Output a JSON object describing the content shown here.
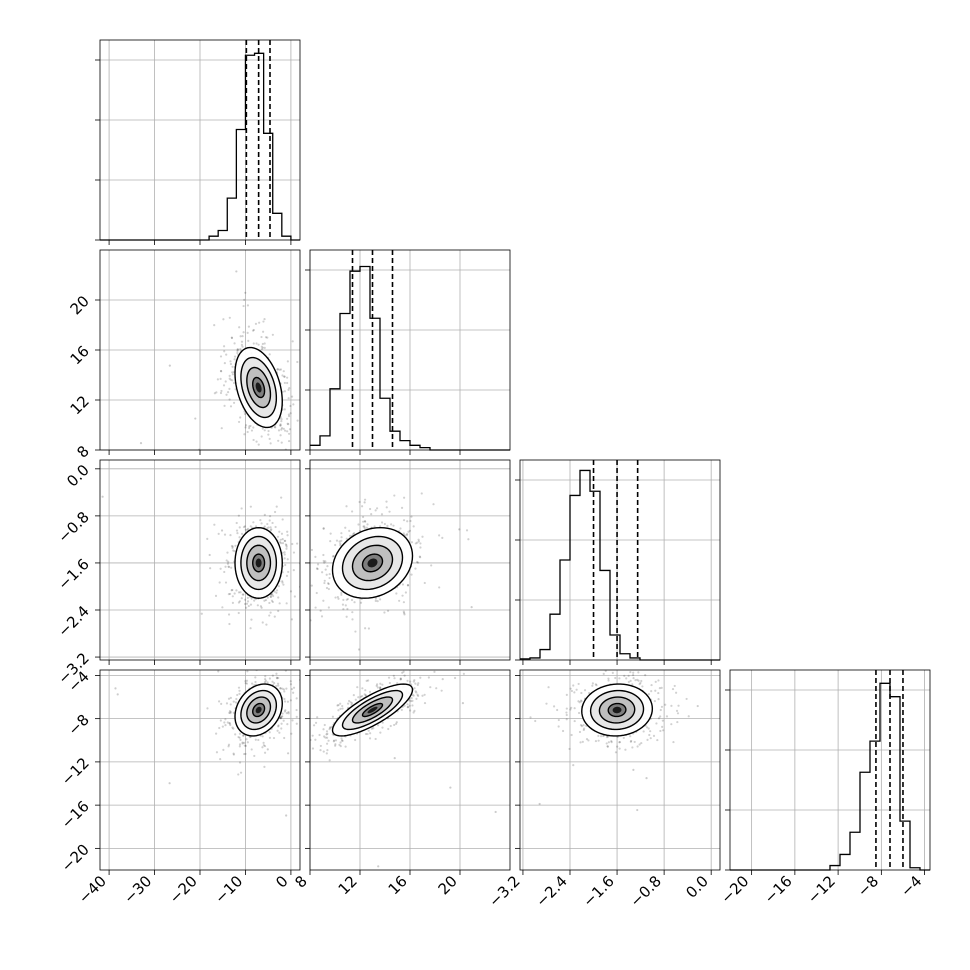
{
  "chart_data": {
    "type": "corner",
    "n_params": 4,
    "axis_labels": [
      "",
      "",
      "",
      ""
    ],
    "ranges": [
      [
        -42,
        2
      ],
      [
        8,
        24
      ],
      [
        -3.25,
        0.15
      ],
      [
        -22,
        -3.5
      ]
    ],
    "ticks": [
      [
        -40,
        -30,
        -20,
        -10,
        0
      ],
      [
        8,
        12,
        16,
        20
      ],
      [
        -3.2,
        -2.4,
        -1.6,
        -0.8,
        0.0
      ],
      [
        -20,
        -16,
        -12,
        -8,
        -4
      ]
    ],
    "tick_labels": [
      [
        "−40",
        "−30",
        "−20",
        "−10",
        "0"
      ],
      [
        "8",
        "12",
        "16",
        "20"
      ],
      [
        "−3.2",
        "−2.4",
        "−1.6",
        "−0.8",
        "0.0"
      ],
      [
        "−20",
        "−16",
        "−12",
        "−8",
        "−4"
      ]
    ],
    "histograms": [
      {
        "param": 0,
        "bin_start": -42,
        "bin_width": 2,
        "counts": [
          0,
          0,
          0,
          0,
          0,
          0,
          0,
          0,
          0,
          0,
          0,
          0,
          2,
          5,
          22,
          58,
          97,
          98,
          56,
          14,
          2,
          0
        ],
        "quantiles": [
          -9.8,
          -7.1,
          -4.6
        ],
        "ymax": 105
      },
      {
        "param": 1,
        "bin_start": 8,
        "bin_width": 0.8,
        "counts": [
          2,
          6,
          26,
          58,
          76,
          78,
          56,
          22,
          8,
          4,
          2,
          1,
          0,
          0,
          0,
          0,
          0,
          0,
          0,
          0
        ],
        "quantiles": [
          11.4,
          13.0,
          14.6
        ],
        "ymax": 85
      },
      {
        "param": 2,
        "bin_start": -3.25,
        "bin_width": 0.17,
        "counts": [
          0.5,
          1,
          5,
          22,
          48,
          79,
          91,
          81,
          43,
          12,
          3,
          1,
          0,
          0,
          0,
          0,
          0,
          0,
          0,
          0
        ],
        "quantiles": [
          -2.0,
          -1.6,
          -1.25
        ],
        "ymax": 96
      },
      {
        "param": 3,
        "bin_start": -22,
        "bin_width": 0.925,
        "counts": [
          0,
          0,
          0,
          0,
          0,
          0,
          0,
          0,
          0,
          0,
          2,
          7,
          17,
          44,
          58,
          84,
          78,
          22,
          1,
          0
        ],
        "quantiles": [
          -8.5,
          -7.2,
          -6.0
        ],
        "ymax": 90
      }
    ],
    "joint": [
      {
        "row": 1,
        "col": 0,
        "mean": [
          -7.1,
          13.0
        ],
        "sd": [
          2.6,
          1.6
        ],
        "corr": -0.35
      },
      {
        "row": 2,
        "col": 0,
        "mean": [
          -7.1,
          -1.6
        ],
        "sd": [
          2.6,
          0.3
        ],
        "corr": 0.0
      },
      {
        "row": 2,
        "col": 1,
        "mean": [
          13.0,
          -1.6
        ],
        "sd": [
          1.6,
          0.3
        ],
        "corr": 0.2
      },
      {
        "row": 3,
        "col": 0,
        "mean": [
          -7.1,
          -7.2
        ],
        "sd": [
          2.6,
          1.2
        ],
        "corr": 0.25
      },
      {
        "row": 3,
        "col": 1,
        "mean": [
          13.0,
          -7.2
        ],
        "sd": [
          1.6,
          1.2
        ],
        "corr": 0.78
      },
      {
        "row": 3,
        "col": 2,
        "mean": [
          -1.6,
          -7.2
        ],
        "sd": [
          0.3,
          1.2
        ],
        "corr": 0.05
      }
    ],
    "contour_levels_sigma": [
      0.5,
      1.0,
      1.5,
      2.0
    ],
    "grid": true,
    "colors": {
      "line": "#000000",
      "grid": "#b0b0b0",
      "points": "#000000",
      "fill": "#808080"
    }
  }
}
